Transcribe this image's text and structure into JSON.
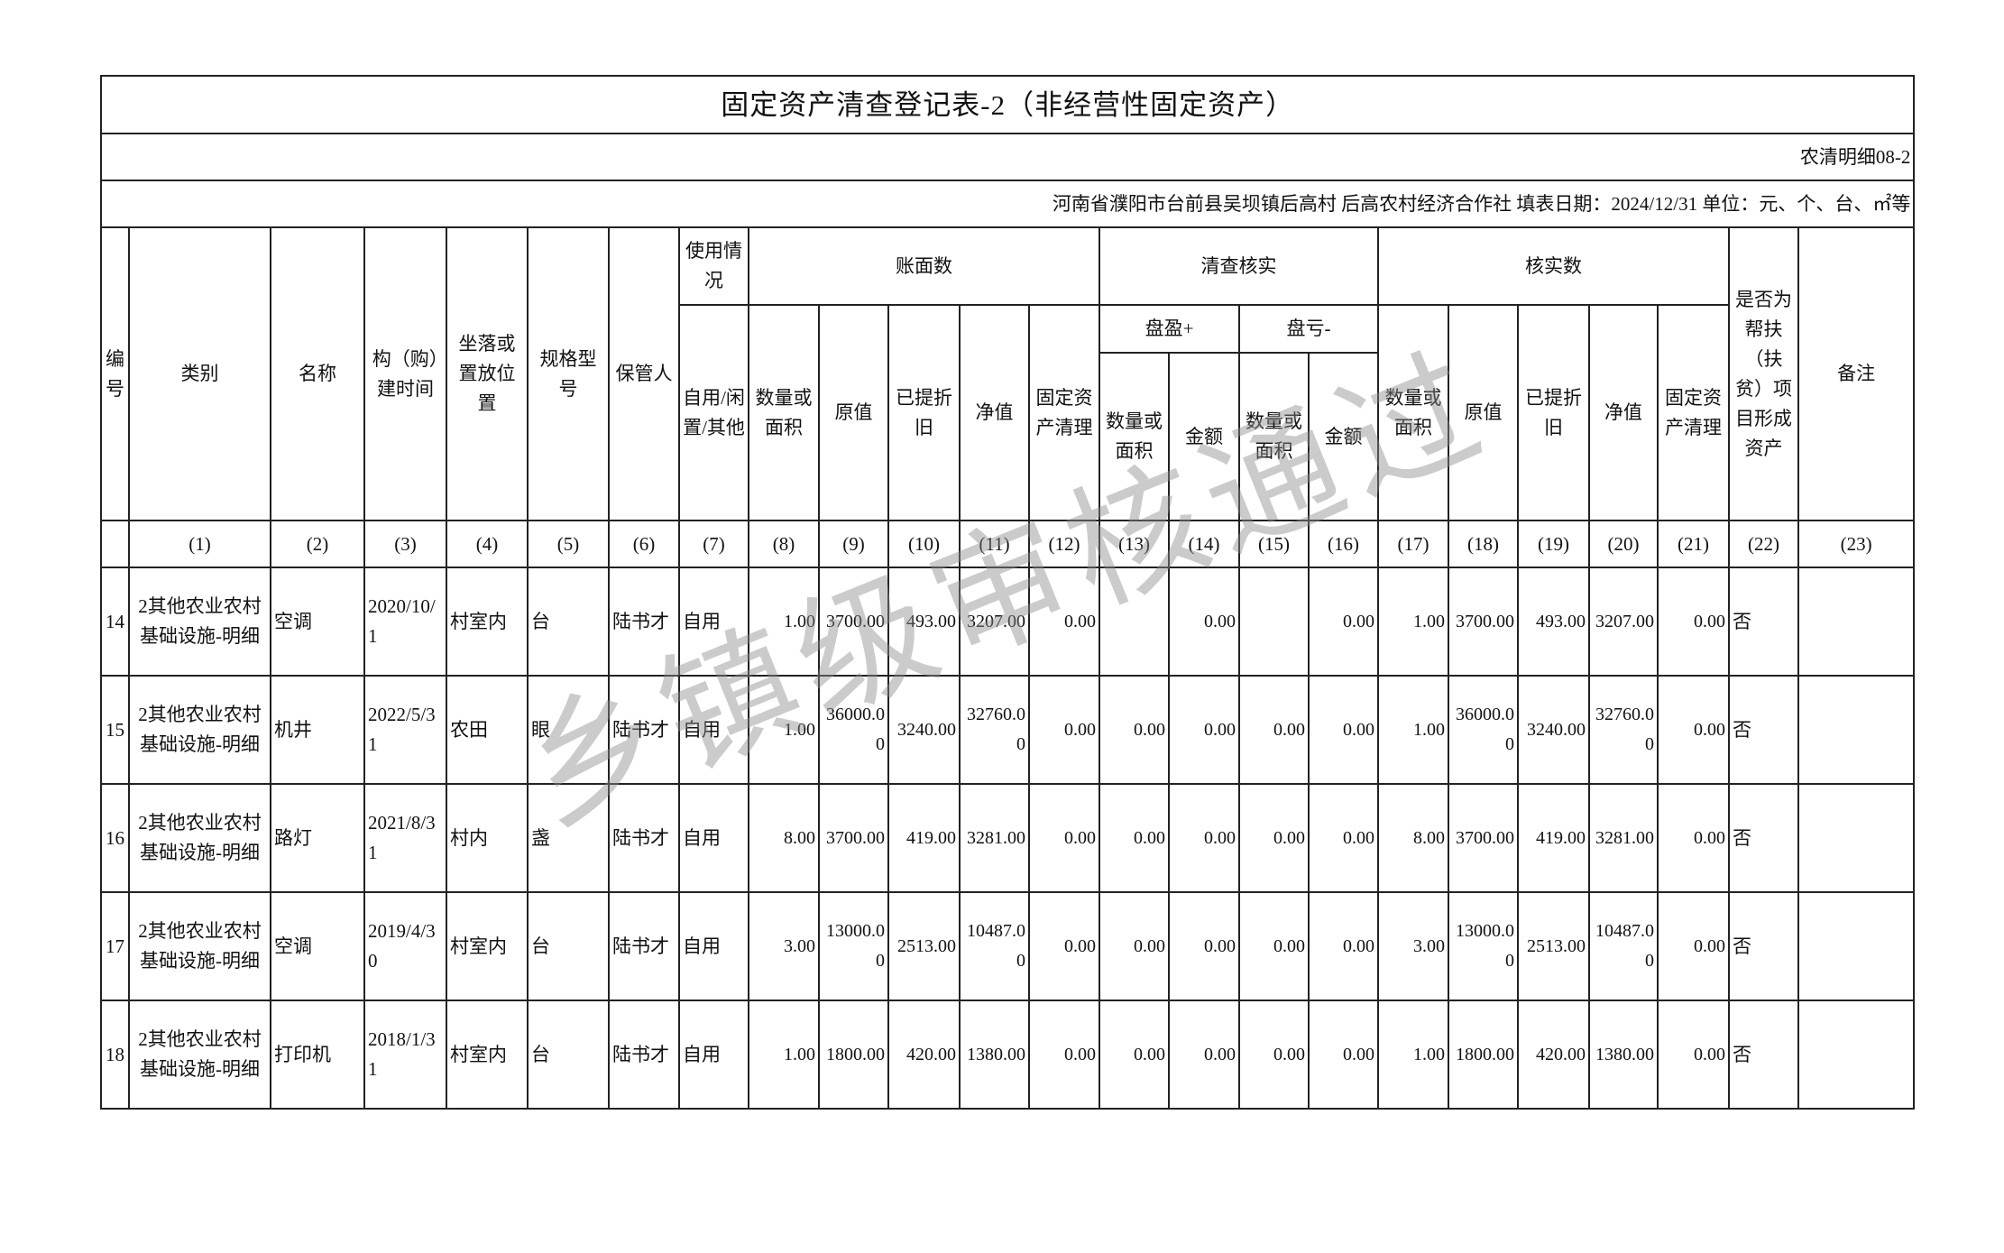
{
  "title": "固定资产清查登记表-2（非经营性固定资产）",
  "form_code": "农清明细08-2",
  "info_line": "河南省濮阳市台前县吴坝镇后高村  后高农村经济合作社  填表日期：2024/12/31  单位：元、个、台、㎡等",
  "headers": {
    "no": "编号",
    "category": "类别",
    "name": "名称",
    "build_time": "构（购）建时间",
    "location": "坐落或置放位置",
    "spec": "规格型号",
    "keeper": "保管人",
    "usage_group": "使用情况",
    "usage": "自用/闲置/其他",
    "book_group": "账面数",
    "check_group": "清查核实",
    "verified_group": "核实数",
    "surplus": "盘盈+",
    "loss": "盘亏-",
    "qty": "数量或面积",
    "orig": "原值",
    "dep": "已提折旧",
    "net": "净值",
    "clear": "固定资产清理",
    "amount": "金额",
    "poverty": "是否为帮扶（扶贫）项目形成资产",
    "remark": "备注"
  },
  "column_numbers": [
    "",
    "(1)",
    "(2)",
    "(3)",
    "(4)",
    "(5)",
    "(6)",
    "(7)",
    "(8)",
    "(9)",
    "(10)",
    "(11)",
    "(12)",
    "(13)",
    "(14)",
    "(15)",
    "(16)",
    "(17)",
    "(18)",
    "(19)",
    "(20)",
    "(21)",
    "(22)",
    "(23)"
  ],
  "rows": [
    [
      "14",
      "2其他农业农村基础设施-明细",
      "空调",
      "2020/10/1",
      "村室内",
      "台",
      "陆书才",
      "自用",
      "1.00",
      "3700.00",
      "493.00",
      "3207.00",
      "0.00",
      "",
      "0.00",
      "",
      "0.00",
      "1.00",
      "3700.00",
      "493.00",
      "3207.00",
      "0.00",
      "否",
      ""
    ],
    [
      "15",
      "2其他农业农村基础设施-明细",
      "机井",
      "2022/5/31",
      "农田",
      "眼",
      "陆书才",
      "自用",
      "1.00",
      "36000.00",
      "3240.00",
      "32760.00",
      "0.00",
      "0.00",
      "0.00",
      "0.00",
      "0.00",
      "1.00",
      "36000.00",
      "3240.00",
      "32760.00",
      "0.00",
      "否",
      ""
    ],
    [
      "16",
      "2其他农业农村基础设施-明细",
      "路灯",
      "2021/8/31",
      "村内",
      "盏",
      "陆书才",
      "自用",
      "8.00",
      "3700.00",
      "419.00",
      "3281.00",
      "0.00",
      "0.00",
      "0.00",
      "0.00",
      "0.00",
      "8.00",
      "3700.00",
      "419.00",
      "3281.00",
      "0.00",
      "否",
      ""
    ],
    [
      "17",
      "2其他农业农村基础设施-明细",
      "空调",
      "2019/4/30",
      "村室内",
      "台",
      "陆书才",
      "自用",
      "3.00",
      "13000.00",
      "2513.00",
      "10487.00",
      "0.00",
      "0.00",
      "0.00",
      "0.00",
      "0.00",
      "3.00",
      "13000.00",
      "2513.00",
      "10487.00",
      "0.00",
      "否",
      ""
    ],
    [
      "18",
      "2其他农业农村基础设施-明细",
      "打印机",
      "2018/1/31",
      "村室内",
      "台",
      "陆书才",
      "自用",
      "1.00",
      "1800.00",
      "420.00",
      "1380.00",
      "0.00",
      "0.00",
      "0.00",
      "0.00",
      "0.00",
      "1.00",
      "1800.00",
      "420.00",
      "1380.00",
      "0.00",
      "否",
      ""
    ]
  ],
  "watermark": "乡镇级审核通过"
}
